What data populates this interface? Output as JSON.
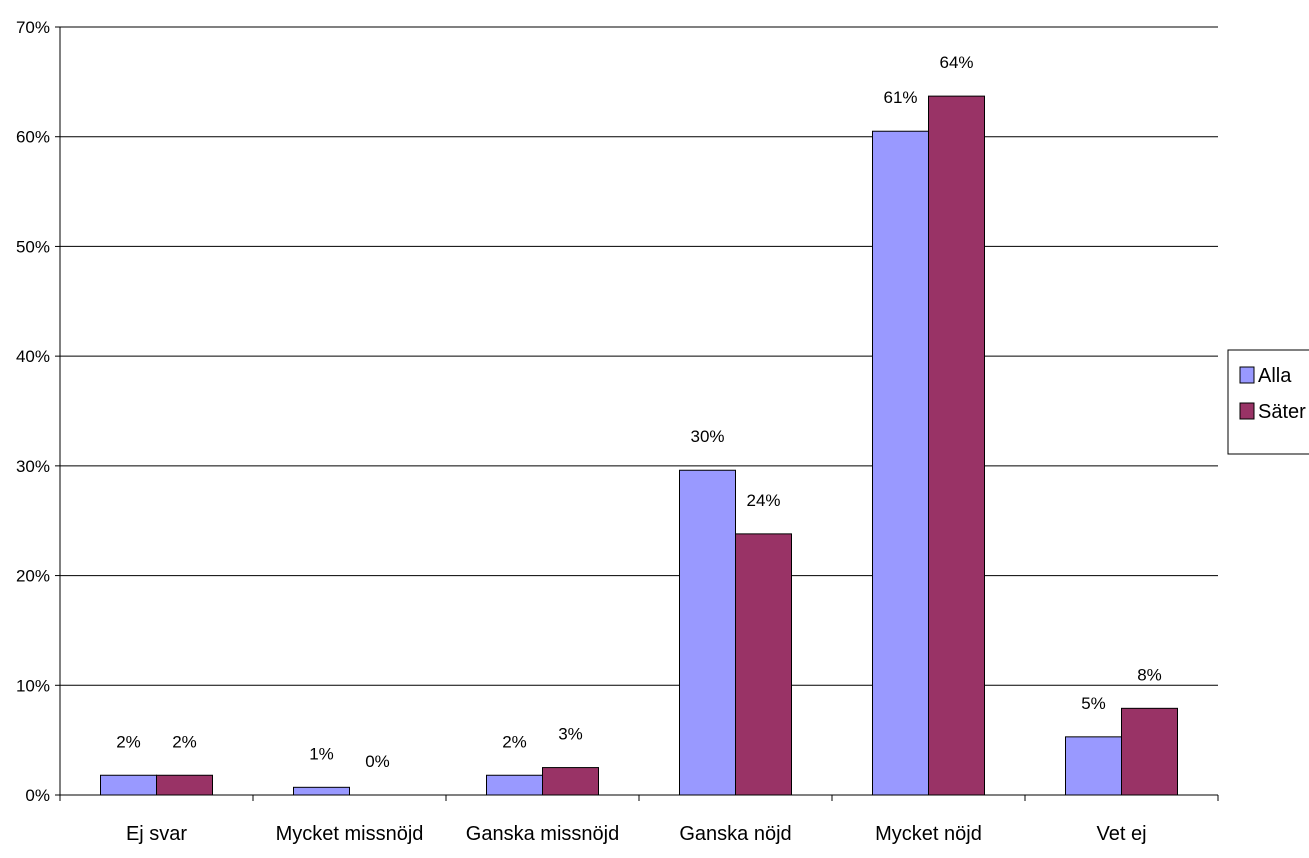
{
  "chart_data": {
    "type": "bar",
    "title": "",
    "xlabel": "",
    "ylabel": "",
    "ylim": [
      0,
      0.7
    ],
    "y_ticks": [
      0,
      0.1,
      0.2,
      0.3,
      0.4,
      0.5,
      0.6,
      0.7
    ],
    "y_tick_labels": [
      "0%",
      "10%",
      "20%",
      "30%",
      "40%",
      "50%",
      "60%",
      "70%"
    ],
    "grid": true,
    "legend_position": "right",
    "categories": [
      "Ej svar",
      "Mycket missnöjd",
      "Ganska missnöjd",
      "Ganska nöjd",
      "Mycket nöjd",
      "Vet ej"
    ],
    "series": [
      {
        "name": "Alla",
        "color": "#9999ff",
        "values": [
          0.018,
          0.007,
          0.018,
          0.296,
          0.605,
          0.053
        ],
        "labels": [
          "2%",
          "1%",
          "2%",
          "30%",
          "61%",
          "5%"
        ]
      },
      {
        "name": "Säter",
        "color": "#993366",
        "values": [
          0.018,
          0.0,
          0.025,
          0.238,
          0.637,
          0.079
        ],
        "labels": [
          "2%",
          "0%",
          "3%",
          "24%",
          "64%",
          "8%"
        ]
      }
    ]
  }
}
